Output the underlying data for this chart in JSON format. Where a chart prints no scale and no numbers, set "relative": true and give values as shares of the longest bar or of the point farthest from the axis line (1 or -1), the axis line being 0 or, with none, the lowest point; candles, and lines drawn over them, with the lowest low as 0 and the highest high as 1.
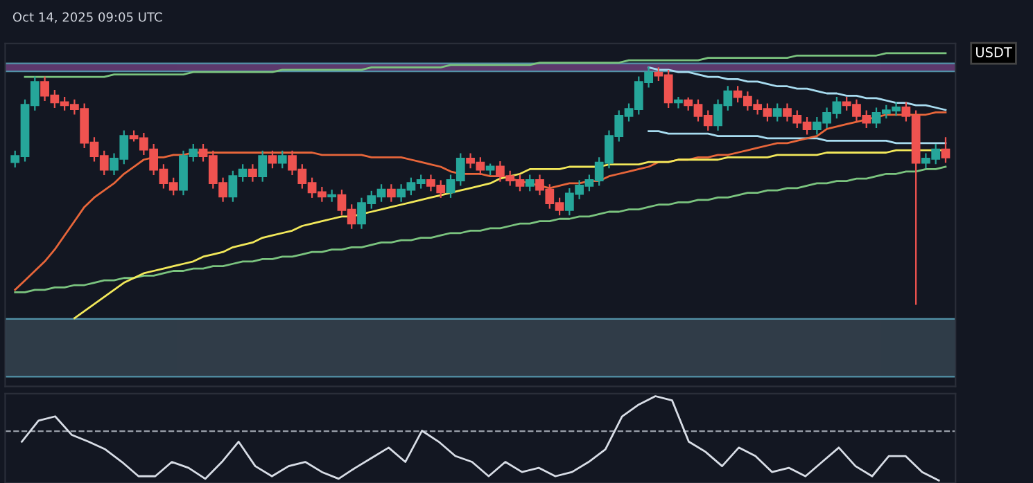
{
  "chart_data": [
    {
      "type": "candlestick",
      "relative": true,
      "ylabel": "USDT",
      "annotations": [
        "Oct 14, 2025 09:05 UTC"
      ],
      "tick_labels": false,
      "categories": [
        null,
        null,
        null,
        null,
        null,
        null,
        null,
        null,
        null,
        null,
        null,
        null,
        null,
        null,
        null,
        null,
        null,
        null,
        null,
        null,
        null,
        null,
        null,
        null,
        null,
        null,
        null,
        null,
        null,
        null,
        null,
        null,
        null,
        null,
        null,
        null,
        null,
        null,
        null,
        null,
        null,
        null,
        null,
        null,
        null,
        null,
        null,
        null,
        null,
        null,
        null,
        null,
        null,
        null,
        null,
        null,
        null,
        null,
        null,
        null,
        null,
        null,
        null,
        null,
        null,
        null,
        null,
        null,
        null,
        null,
        null,
        null,
        null,
        null,
        null,
        null,
        null,
        null,
        null,
        null,
        null,
        null,
        null,
        null,
        null,
        null,
        null,
        null,
        null,
        null,
        null,
        null,
        null,
        null,
        null
      ],
      "ohlc": [
        [
          0.6,
          0.645,
          0.58,
          0.625
        ],
        [
          0.625,
          0.861,
          0.605,
          0.841
        ],
        [
          0.841,
          0.958,
          0.821,
          0.938
        ],
        [
          0.938,
          0.958,
          0.861,
          0.881
        ],
        [
          0.881,
          0.901,
          0.832,
          0.852
        ],
        [
          0.852,
          0.872,
          0.821,
          0.841
        ],
        [
          0.841,
          0.861,
          0.804,
          0.824
        ],
        [
          0.824,
          0.844,
          0.662,
          0.682
        ],
        [
          0.682,
          0.702,
          0.605,
          0.625
        ],
        [
          0.625,
          0.645,
          0.548,
          0.568
        ],
        [
          0.568,
          0.634,
          0.548,
          0.614
        ],
        [
          0.614,
          0.73,
          0.594,
          0.71
        ],
        [
          0.71,
          0.73,
          0.69,
          0.7
        ],
        [
          0.7,
          0.72,
          0.633,
          0.653
        ],
        [
          0.653,
          0.673,
          0.548,
          0.568
        ],
        [
          0.568,
          0.588,
          0.491,
          0.511
        ],
        [
          0.511,
          0.531,
          0.463,
          0.483
        ],
        [
          0.483,
          0.645,
          0.463,
          0.625
        ],
        [
          0.625,
          0.673,
          0.605,
          0.653
        ],
        [
          0.653,
          0.673,
          0.605,
          0.625
        ],
        [
          0.625,
          0.645,
          0.491,
          0.511
        ],
        [
          0.511,
          0.531,
          0.435,
          0.455
        ],
        [
          0.455,
          0.56,
          0.435,
          0.54
        ],
        [
          0.54,
          0.588,
          0.52,
          0.568
        ],
        [
          0.568,
          0.588,
          0.52,
          0.54
        ],
        [
          0.54,
          0.645,
          0.52,
          0.625
        ],
        [
          0.625,
          0.645,
          0.577,
          0.597
        ],
        [
          0.597,
          0.645,
          0.577,
          0.625
        ],
        [
          0.625,
          0.645,
          0.548,
          0.568
        ],
        [
          0.568,
          0.588,
          0.491,
          0.511
        ],
        [
          0.511,
          0.531,
          0.452,
          0.472
        ],
        [
          0.472,
          0.492,
          0.435,
          0.455
        ],
        [
          0.455,
          0.48,
          0.435,
          0.46
        ],
        [
          0.46,
          0.48,
          0.378,
          0.398
        ],
        [
          0.398,
          0.418,
          0.321,
          0.341
        ],
        [
          0.341,
          0.446,
          0.321,
          0.426
        ],
        [
          0.426,
          0.475,
          0.406,
          0.455
        ],
        [
          0.455,
          0.503,
          0.435,
          0.483
        ],
        [
          0.483,
          0.503,
          0.435,
          0.455
        ],
        [
          0.455,
          0.503,
          0.435,
          0.483
        ],
        [
          0.483,
          0.531,
          0.463,
          0.511
        ],
        [
          0.511,
          0.543,
          0.491,
          0.523
        ],
        [
          0.523,
          0.543,
          0.48,
          0.5
        ],
        [
          0.5,
          0.52,
          0.452,
          0.472
        ],
        [
          0.472,
          0.543,
          0.452,
          0.523
        ],
        [
          0.523,
          0.634,
          0.503,
          0.614
        ],
        [
          0.614,
          0.634,
          0.577,
          0.597
        ],
        [
          0.597,
          0.617,
          0.548,
          0.568
        ],
        [
          0.568,
          0.59,
          0.548,
          0.58
        ],
        [
          0.58,
          0.6,
          0.52,
          0.54
        ],
        [
          0.54,
          0.56,
          0.503,
          0.523
        ],
        [
          0.523,
          0.543,
          0.48,
          0.5
        ],
        [
          0.5,
          0.543,
          0.48,
          0.523
        ],
        [
          0.523,
          0.543,
          0.463,
          0.483
        ],
        [
          0.483,
          0.503,
          0.406,
          0.426
        ],
        [
          0.426,
          0.446,
          0.378,
          0.398
        ],
        [
          0.398,
          0.486,
          0.378,
          0.466
        ],
        [
          0.466,
          0.52,
          0.446,
          0.5
        ],
        [
          0.5,
          0.543,
          0.48,
          0.523
        ],
        [
          0.523,
          0.617,
          0.503,
          0.597
        ],
        [
          0.597,
          0.73,
          0.577,
          0.71
        ],
        [
          0.71,
          0.815,
          0.69,
          0.795
        ],
        [
          0.795,
          0.844,
          0.775,
          0.824
        ],
        [
          0.824,
          0.958,
          0.804,
          0.938
        ],
        [
          0.938,
          1.0,
          0.918,
          0.977
        ],
        [
          0.977,
          0.997,
          0.946,
          0.966
        ],
        [
          0.966,
          0.986,
          0.832,
          0.852
        ],
        [
          0.852,
          0.872,
          0.83,
          0.86
        ],
        [
          0.86,
          0.87,
          0.821,
          0.841
        ],
        [
          0.841,
          0.861,
          0.775,
          0.795
        ],
        [
          0.795,
          0.815,
          0.736,
          0.756
        ],
        [
          0.756,
          0.861,
          0.736,
          0.841
        ],
        [
          0.841,
          0.918,
          0.821,
          0.898
        ],
        [
          0.898,
          0.918,
          0.855,
          0.875
        ],
        [
          0.875,
          0.895,
          0.821,
          0.841
        ],
        [
          0.841,
          0.861,
          0.804,
          0.824
        ],
        [
          0.824,
          0.844,
          0.775,
          0.795
        ],
        [
          0.795,
          0.844,
          0.775,
          0.824
        ],
        [
          0.824,
          0.844,
          0.775,
          0.795
        ],
        [
          0.795,
          0.815,
          0.747,
          0.767
        ],
        [
          0.767,
          0.787,
          0.719,
          0.739
        ],
        [
          0.739,
          0.787,
          0.719,
          0.767
        ],
        [
          0.767,
          0.827,
          0.747,
          0.807
        ],
        [
          0.807,
          0.872,
          0.787,
          0.852
        ],
        [
          0.852,
          0.872,
          0.821,
          0.841
        ],
        [
          0.841,
          0.861,
          0.775,
          0.795
        ],
        [
          0.795,
          0.815,
          0.747,
          0.767
        ],
        [
          0.767,
          0.827,
          0.747,
          0.807
        ],
        [
          0.807,
          0.838,
          0.787,
          0.818
        ],
        [
          0.818,
          0.85,
          0.798,
          0.83
        ],
        [
          0.83,
          0.85,
          0.775,
          0.795
        ],
        [
          0.795,
          0.815,
          0.0,
          0.597
        ],
        [
          0.597,
          0.634,
          0.577,
          0.614
        ],
        [
          0.614,
          0.673,
          0.594,
          0.653
        ],
        [
          0.653,
          0.702,
          0.6,
          0.62
        ]
      ],
      "series": [
        {
          "type": "line",
          "color": "#7bc47f",
          "values": [
            null,
            0.96,
            0.96,
            0.96,
            0.96,
            0.96,
            0.96,
            0.96,
            0.96,
            0.96,
            0.97,
            0.97,
            0.97,
            0.97,
            0.97,
            0.97,
            0.97,
            0.97,
            0.98,
            0.98,
            0.98,
            0.98,
            0.98,
            0.98,
            0.98,
            0.98,
            0.98,
            0.99,
            0.99,
            0.99,
            0.99,
            0.99,
            0.99,
            0.99,
            0.99,
            0.99,
            1.0,
            1.0,
            1.0,
            1.0,
            1.0,
            1.0,
            1.0,
            1.0,
            1.01,
            1.01,
            1.01,
            1.01,
            1.01,
            1.01,
            1.01,
            1.01,
            1.01,
            1.02,
            1.02,
            1.02,
            1.02,
            1.02,
            1.02,
            1.02,
            1.02,
            1.02,
            1.03,
            1.03,
            1.03,
            1.03,
            1.03,
            1.03,
            1.03,
            1.03,
            1.04,
            1.04,
            1.04,
            1.04,
            1.04,
            1.04,
            1.04,
            1.04,
            1.04,
            1.05,
            1.05,
            1.05,
            1.05,
            1.05,
            1.05,
            1.05,
            1.05,
            1.05,
            1.06,
            1.06,
            1.06,
            1.06,
            1.06,
            1.06,
            1.06
          ]
        },
        {
          "type": "line",
          "color": "#7bc47f",
          "values": [
            0.05,
            0.05,
            0.06,
            0.06,
            0.07,
            0.07,
            0.08,
            0.08,
            0.09,
            0.1,
            0.1,
            0.11,
            0.11,
            0.12,
            0.12,
            0.13,
            0.14,
            0.14,
            0.15,
            0.15,
            0.16,
            0.16,
            0.17,
            0.18,
            0.18,
            0.19,
            0.19,
            0.2,
            0.2,
            0.21,
            0.22,
            0.22,
            0.23,
            0.23,
            0.24,
            0.24,
            0.25,
            0.26,
            0.26,
            0.27,
            0.27,
            0.28,
            0.28,
            0.29,
            0.3,
            0.3,
            0.31,
            0.31,
            0.32,
            0.32,
            0.33,
            0.34,
            0.34,
            0.35,
            0.35,
            0.36,
            0.36,
            0.37,
            0.37,
            0.38,
            0.39,
            0.39,
            0.4,
            0.4,
            0.41,
            0.42,
            0.42,
            0.43,
            0.43,
            0.44,
            0.44,
            0.45,
            0.45,
            0.46,
            0.47,
            0.47,
            0.48,
            0.48,
            0.49,
            0.49,
            0.5,
            0.51,
            0.51,
            0.52,
            0.52,
            0.53,
            0.53,
            0.54,
            0.55,
            0.55,
            0.56,
            0.56,
            0.57,
            0.57,
            0.58
          ]
        },
        {
          "type": "line",
          "color": "#a8dcf0",
          "values": [
            null,
            null,
            null,
            null,
            null,
            null,
            null,
            null,
            null,
            null,
            null,
            null,
            null,
            null,
            null,
            null,
            null,
            null,
            null,
            null,
            null,
            null,
            null,
            null,
            null,
            null,
            null,
            null,
            null,
            null,
            null,
            null,
            null,
            null,
            null,
            null,
            null,
            null,
            null,
            null,
            null,
            null,
            null,
            null,
            null,
            null,
            null,
            null,
            null,
            null,
            null,
            null,
            null,
            null,
            null,
            null,
            null,
            null,
            null,
            null,
            null,
            null,
            null,
            null,
            1.0,
            0.99,
            0.99,
            0.98,
            0.98,
            0.97,
            0.96,
            0.96,
            0.95,
            0.95,
            0.94,
            0.94,
            0.93,
            0.92,
            0.92,
            0.91,
            0.91,
            0.9,
            0.89,
            0.89,
            0.88,
            0.88,
            0.87,
            0.87,
            0.86,
            0.85,
            0.85,
            0.84,
            0.84,
            0.83,
            0.82
          ]
        },
        {
          "type": "line",
          "color": "#a8dcf0",
          "values": [
            null,
            null,
            null,
            null,
            null,
            null,
            null,
            null,
            null,
            null,
            null,
            null,
            null,
            null,
            null,
            null,
            null,
            null,
            null,
            null,
            null,
            null,
            null,
            null,
            null,
            null,
            null,
            null,
            null,
            null,
            null,
            null,
            null,
            null,
            null,
            null,
            null,
            null,
            null,
            null,
            null,
            null,
            null,
            null,
            null,
            null,
            null,
            null,
            null,
            null,
            null,
            null,
            null,
            null,
            null,
            null,
            null,
            null,
            null,
            null,
            null,
            null,
            null,
            null,
            0.73,
            0.73,
            0.72,
            0.72,
            0.72,
            0.72,
            0.72,
            0.71,
            0.71,
            0.71,
            0.71,
            0.71,
            0.7,
            0.7,
            0.7,
            0.7,
            0.7,
            0.7,
            0.69,
            0.69,
            0.69,
            0.69,
            0.69,
            0.69,
            0.69,
            0.68,
            0.68,
            0.68,
            0.68,
            0.68,
            0.68
          ]
        },
        {
          "type": "line",
          "color": "#e8663a",
          "values": [
            0.06,
            0.1,
            0.14,
            0.18,
            0.23,
            0.29,
            0.35,
            0.41,
            0.45,
            0.48,
            0.51,
            0.55,
            0.58,
            0.61,
            0.62,
            0.62,
            0.63,
            0.63,
            0.64,
            0.64,
            0.64,
            0.64,
            0.64,
            0.64,
            0.64,
            0.64,
            0.64,
            0.64,
            0.64,
            0.64,
            0.64,
            0.63,
            0.63,
            0.63,
            0.63,
            0.63,
            0.62,
            0.62,
            0.62,
            0.62,
            0.61,
            0.6,
            0.59,
            0.58,
            0.56,
            0.55,
            0.55,
            0.55,
            0.54,
            0.54,
            0.53,
            0.52,
            0.51,
            0.5,
            0.49,
            0.5,
            0.51,
            0.51,
            0.52,
            0.52,
            0.54,
            0.55,
            0.56,
            0.57,
            0.58,
            0.6,
            0.6,
            0.61,
            0.61,
            0.62,
            0.62,
            0.63,
            0.63,
            0.64,
            0.65,
            0.66,
            0.67,
            0.68,
            0.68,
            0.69,
            0.7,
            0.71,
            0.74,
            0.75,
            0.76,
            0.77,
            0.78,
            0.79,
            0.8,
            0.8,
            0.8,
            0.8,
            0.8,
            0.81,
            0.81
          ]
        },
        {
          "type": "line",
          "color": "#f2e85a",
          "values": [
            null,
            null,
            null,
            null,
            null,
            null,
            -0.06,
            -0.03,
            0.0,
            0.03,
            0.06,
            0.09,
            0.11,
            0.13,
            0.14,
            0.15,
            0.16,
            0.17,
            0.18,
            0.2,
            0.21,
            0.22,
            0.24,
            0.25,
            0.26,
            0.28,
            0.29,
            0.3,
            0.31,
            0.33,
            0.34,
            0.35,
            0.36,
            0.37,
            0.37,
            0.38,
            0.39,
            0.4,
            0.41,
            0.42,
            0.43,
            0.44,
            0.45,
            0.46,
            0.47,
            0.48,
            0.49,
            0.5,
            0.51,
            0.53,
            0.54,
            0.55,
            0.57,
            0.57,
            0.57,
            0.57,
            0.58,
            0.58,
            0.58,
            0.58,
            0.59,
            0.59,
            0.59,
            0.59,
            0.6,
            0.6,
            0.6,
            0.61,
            0.61,
            0.61,
            0.61,
            0.61,
            0.62,
            0.62,
            0.62,
            0.62,
            0.62,
            0.63,
            0.63,
            0.63,
            0.63,
            0.63,
            0.64,
            0.64,
            0.64,
            0.64,
            0.64,
            0.64,
            0.64,
            0.65,
            0.65,
            0.65,
            0.65,
            0.65,
            0.65
          ]
        }
      ],
      "bands": [
        {
          "axis": "y",
          "from": 0.983,
          "to": 1.017,
          "color": "#6b3f7a"
        },
        {
          "axis": "y",
          "from": -0.307,
          "to": -0.063,
          "color": "#36434f"
        }
      ]
    },
    {
      "type": "line",
      "relative": true,
      "tick_labels": false,
      "marker": "none",
      "line_style": "solid",
      "categories": [
        null,
        null,
        null,
        null,
        null,
        null,
        null,
        null,
        null,
        null,
        null,
        null,
        null,
        null,
        null,
        null,
        null,
        null,
        null,
        null,
        null,
        null,
        null,
        null,
        null,
        null,
        null,
        null,
        null,
        null,
        null,
        null,
        null,
        null,
        null,
        null,
        null,
        null,
        null,
        null,
        null,
        null,
        null,
        null,
        null,
        null,
        null,
        null,
        null,
        null,
        null,
        null,
        null,
        null,
        null,
        null
      ],
      "series": [
        {
          "color": "#d8dde6",
          "values": [
            0.46,
            0.71,
            0.76,
            0.54,
            0.46,
            0.37,
            0.22,
            0.05,
            0.05,
            0.22,
            0.15,
            0.02,
            0.22,
            0.46,
            0.17,
            0.05,
            0.17,
            0.22,
            0.1,
            0.02,
            0.15,
            0.27,
            0.39,
            0.22,
            0.59,
            0.46,
            0.29,
            0.22,
            0.05,
            0.22,
            0.1,
            0.15,
            0.05,
            0.1,
            0.22,
            0.37,
            0.76,
            0.9,
            1.0,
            0.95,
            0.46,
            0.34,
            0.17,
            0.39,
            0.29,
            0.1,
            0.15,
            0.05,
            0.22,
            0.39,
            0.17,
            0.05,
            0.29,
            0.29,
            0.1,
            0.0
          ]
        }
      ],
      "ref_lines": [
        {
          "axis": "y",
          "value": 0.585,
          "color": "#9aa0aa",
          "line_style": "dashed"
        }
      ]
    }
  ]
}
